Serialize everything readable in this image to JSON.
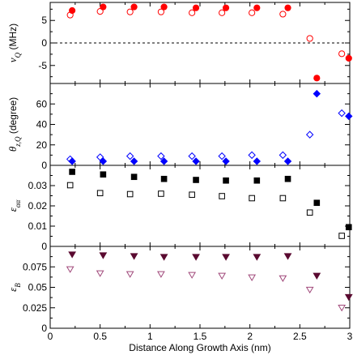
{
  "chart_data": {
    "type": "scatter",
    "x_axis": {
      "label": "Distance Along Growth Axis (nm)",
      "range": [
        0,
        3
      ],
      "ticks": [
        0,
        0.5,
        1,
        1.5,
        2,
        2.5,
        3
      ],
      "tick_labels": [
        "0",
        "0.5",
        "1",
        "1.5",
        "2",
        "2.5",
        "3"
      ]
    },
    "panels": [
      {
        "ylabel": "ν_Q (MHz)",
        "ylabel_main": "ν",
        "ylabel_sub": "Q",
        "ylabel_rest": " (MHz)",
        "ylim": [
          -9,
          9
        ],
        "ticks": [
          -5,
          0,
          5
        ],
        "tick_labels": [
          "-5",
          "0",
          "5"
        ],
        "zero_line": true,
        "series": [
          {
            "marker": "circle",
            "filled": true,
            "color": "#ff0000",
            "x": [
              0.22,
              0.53,
              0.84,
              1.14,
              1.46,
              1.76,
              2.07,
              2.38,
              2.67,
              2.99
            ],
            "y": [
              7.2,
              8.0,
              8.0,
              8.0,
              7.8,
              7.8,
              7.8,
              7.8,
              -7.8,
              -3.4
            ]
          },
          {
            "marker": "circle",
            "filled": false,
            "color": "#ff0000",
            "x": [
              0.2,
              0.5,
              0.8,
              1.11,
              1.42,
              1.72,
              2.02,
              2.33,
              2.6,
              2.92
            ],
            "y": [
              6.2,
              7.0,
              6.9,
              6.9,
              6.7,
              6.7,
              6.7,
              6.4,
              1.0,
              -2.4
            ]
          }
        ]
      },
      {
        "ylabel": "θ_z,Q (degree)",
        "ylabel_main": "θ",
        "ylabel_sub": "z,Q",
        "ylabel_rest": " (degree)",
        "ylim": [
          0,
          80
        ],
        "ticks": [
          0,
          20,
          40,
          60
        ],
        "tick_labels": [
          "0",
          "20",
          "40",
          "60"
        ],
        "zero_line": false,
        "series": [
          {
            "marker": "diamond",
            "filled": true,
            "color": "#0000ff",
            "x": [
              0.22,
              0.53,
              0.84,
              1.14,
              1.46,
              1.76,
              2.07,
              2.38,
              2.67,
              2.99
            ],
            "y": [
              4,
              4,
              4,
              4,
              4,
              4,
              4,
              4,
              70,
              48
            ]
          },
          {
            "marker": "diamond",
            "filled": false,
            "color": "#0000ff",
            "x": [
              0.2,
              0.5,
              0.8,
              1.11,
              1.42,
              1.72,
              2.02,
              2.33,
              2.6,
              2.92
            ],
            "y": [
              6,
              8,
              9,
              9,
              9,
              9,
              10,
              10,
              30,
              51
            ]
          }
        ]
      },
      {
        "ylabel": "ε_αα",
        "ylabel_main": "ε",
        "ylabel_sub": "αα",
        "ylabel_rest": "",
        "ylim": [
          0,
          0.04
        ],
        "ticks": [
          0,
          0.01,
          0.02,
          0.03
        ],
        "tick_labels": [
          "0",
          "0.01",
          "0.02",
          "0.03"
        ],
        "zero_line": false,
        "series": [
          {
            "marker": "square",
            "filled": true,
            "color": "#000000",
            "x": [
              0.22,
              0.53,
              0.84,
              1.14,
              1.46,
              1.76,
              2.07,
              2.38,
              2.67,
              2.99
            ],
            "y": [
              0.0368,
              0.0355,
              0.0343,
              0.0333,
              0.0328,
              0.0325,
              0.0325,
              0.0333,
              0.0215,
              0.0095
            ]
          },
          {
            "marker": "square",
            "filled": false,
            "color": "#000000",
            "x": [
              0.2,
              0.5,
              0.8,
              1.11,
              1.42,
              1.72,
              2.02,
              2.33,
              2.6,
              2.92
            ],
            "y": [
              0.0302,
              0.0263,
              0.0258,
              0.026,
              0.0255,
              0.0248,
              0.0238,
              0.0238,
              0.0167,
              0.0052
            ]
          }
        ]
      },
      {
        "ylabel": "ε_B",
        "ylabel_main": "ε",
        "ylabel_sub": "B",
        "ylabel_rest": "",
        "ylim": [
          0,
          0.1
        ],
        "ticks": [
          0,
          0.025,
          0.05,
          0.075
        ],
        "tick_labels": [
          "0",
          "0.025",
          "0.05",
          "0.075"
        ],
        "zero_line": false,
        "series": [
          {
            "marker": "triangle-down",
            "filled": true,
            "color": "#5a0a30",
            "x": [
              0.22,
              0.53,
              0.84,
              1.14,
              1.46,
              1.76,
              2.07,
              2.38,
              2.67,
              2.99
            ],
            "y": [
              0.09,
              0.089,
              0.088,
              0.087,
              0.087,
              0.087,
              0.087,
              0.088,
              0.064,
              0.038
            ]
          },
          {
            "marker": "triangle-down",
            "filled": false,
            "color": "#a0487a",
            "x": [
              0.2,
              0.5,
              0.8,
              1.11,
              1.42,
              1.72,
              2.02,
              2.33,
              2.6,
              2.92
            ],
            "y": [
              0.072,
              0.067,
              0.066,
              0.066,
              0.065,
              0.064,
              0.062,
              0.061,
              0.047,
              0.025
            ]
          }
        ]
      }
    ]
  }
}
